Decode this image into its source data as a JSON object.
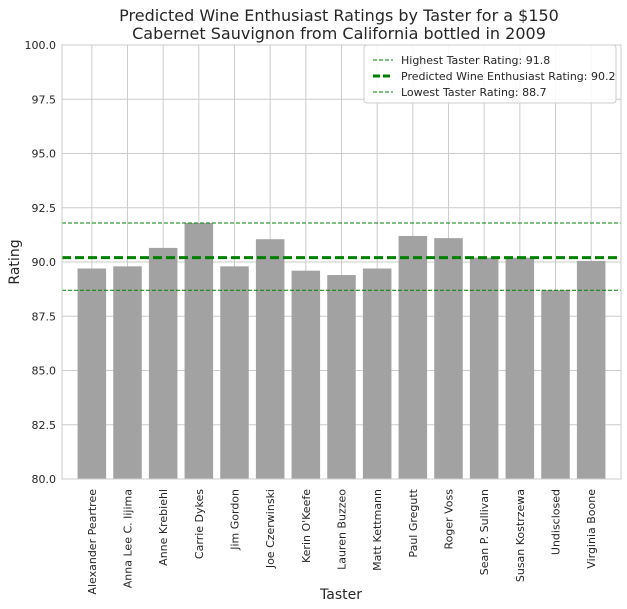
{
  "chart_data": {
    "type": "bar",
    "title_lines": [
      "Predicted Wine Enthusiast Ratings by Taster for a $150",
      "Cabernet Sauvignon from California bottled in 2009"
    ],
    "xlabel": "Taster",
    "ylabel": "Rating",
    "ylim": [
      80,
      100
    ],
    "yticks": [
      "80.0",
      "82.5",
      "85.0",
      "87.5",
      "90.0",
      "92.5",
      "95.0",
      "97.5",
      "100.0"
    ],
    "grid": true,
    "legend_position": "top-right",
    "categories": [
      "Alexander Peartree",
      "Anna Lee C. Iijima",
      "Anne Krebiehl",
      "Carrie Dykes",
      "Jim Gordon",
      "Joe Czerwinski",
      "Kerin O'Keefe",
      "Lauren Buzzeo",
      "Matt Kettmann",
      "Paul Gregutt",
      "Roger Voss",
      "Sean P. Sullivan",
      "Susan Kostrzewa",
      "Undisclosed",
      "Virginia Boone"
    ],
    "values": [
      89.7,
      89.8,
      90.65,
      91.8,
      89.8,
      91.05,
      89.6,
      89.4,
      89.7,
      91.2,
      91.1,
      90.2,
      90.2,
      88.7,
      90.05
    ],
    "bar_color": "#a2a2a2",
    "reference_lines": [
      {
        "label": "Highest Taster Rating: 91.8",
        "value": 91.8,
        "color": "#008000",
        "style": "dashed-thin"
      },
      {
        "label": "Predicted Wine Enthusiast Rating: 90.2",
        "value": 90.2,
        "color": "#008000",
        "style": "dashed-thick"
      },
      {
        "label": "Lowest Taster Rating: 88.7",
        "value": 88.7,
        "color": "#008000",
        "style": "dashed-thin"
      }
    ]
  }
}
